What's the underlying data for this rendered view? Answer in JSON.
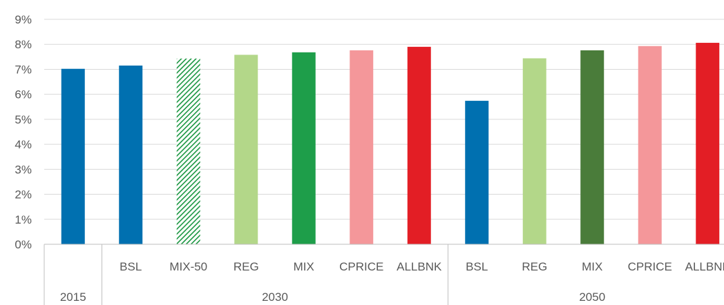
{
  "chart_data": {
    "type": "bar",
    "ylim": [
      0,
      9
    ],
    "y_ticks": [
      "0%",
      "1%",
      "2%",
      "3%",
      "4%",
      "5%",
      "6%",
      "7%",
      "8%",
      "9%"
    ],
    "grid": true,
    "groups": [
      {
        "label": "2015",
        "categories": [
          ""
        ]
      },
      {
        "label": "2030",
        "categories": [
          "BSL",
          "MIX-50",
          "REG",
          "MIX",
          "CPRICE",
          "ALLBNK"
        ]
      },
      {
        "label": "2050",
        "categories": [
          "BSL",
          "REG",
          "MIX",
          "CPRICE",
          "ALLBNK"
        ]
      }
    ],
    "bars": [
      {
        "group": "2015",
        "category": "",
        "value": 7.02,
        "color": "#0070b0",
        "pattern": "solid"
      },
      {
        "group": "2030",
        "category": "BSL",
        "value": 7.15,
        "color": "#0070b0",
        "pattern": "solid"
      },
      {
        "group": "2030",
        "category": "MIX-50",
        "value": 7.43,
        "color": "#1a9641",
        "pattern": "hatched"
      },
      {
        "group": "2030",
        "category": "REG",
        "value": 7.58,
        "color": "#b3d789",
        "pattern": "solid"
      },
      {
        "group": "2030",
        "category": "MIX",
        "value": 7.68,
        "color": "#1e9e4a",
        "pattern": "solid"
      },
      {
        "group": "2030",
        "category": "CPRICE",
        "value": 7.76,
        "color": "#f4979a",
        "pattern": "solid"
      },
      {
        "group": "2030",
        "category": "ALLBNK",
        "value": 7.9,
        "color": "#e31e25",
        "pattern": "solid"
      },
      {
        "group": "2050",
        "category": "BSL",
        "value": 5.74,
        "color": "#0070b0",
        "pattern": "solid"
      },
      {
        "group": "2050",
        "category": "REG",
        "value": 7.44,
        "color": "#b3d789",
        "pattern": "solid"
      },
      {
        "group": "2050",
        "category": "MIX",
        "value": 7.76,
        "color": "#4a7c3a",
        "pattern": "solid"
      },
      {
        "group": "2050",
        "category": "CPRICE",
        "value": 7.93,
        "color": "#f4979a",
        "pattern": "solid"
      },
      {
        "group": "2050",
        "category": "ALLBNK",
        "value": 8.06,
        "color": "#e31e25",
        "pattern": "solid"
      }
    ]
  }
}
